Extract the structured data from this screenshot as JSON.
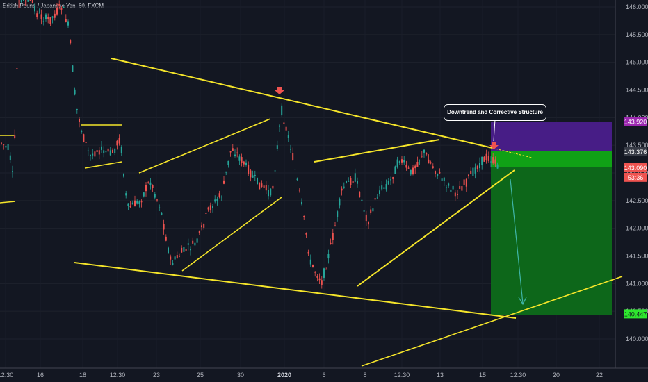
{
  "title": "British Pound / Japanese Yen, 60, FXCM",
  "annotation": "Downtrend and Corrective Structure",
  "chart_data": {
    "type": "candlestick",
    "symbol": "British Pound / Japanese Yen",
    "interval": "60",
    "source": "FXCM",
    "y_ticks": [
      "146.000",
      "145.500",
      "145.000",
      "144.500",
      "144.000",
      "143.500",
      "143.000",
      "142.500",
      "142.000",
      "141.500",
      "141.000",
      "140.500",
      "140.000"
    ],
    "x_ticks": [
      "12:30",
      "16",
      "18",
      "12:30",
      "23",
      "25",
      "30",
      "2020",
      "6",
      "8",
      "12:30",
      "13",
      "15",
      "12:30",
      "20",
      "22"
    ],
    "ylim": [
      139.35,
      146.15
    ],
    "price_labels": {
      "stop_loss": "143.920",
      "entry": "143.376",
      "current": "143.090",
      "countdown": "53:36",
      "take_profit": "140.447"
    },
    "position": {
      "entry": 143.376,
      "stop_loss": 143.92,
      "take_profit": 140.447
    },
    "colors": {
      "background": "#131722",
      "up_candle": "#26a69a",
      "down_candle": "#ef5350",
      "trendline": "#f5e52a",
      "stop_zone": "#4a1e8c",
      "profit_zone": "#0d6b1a",
      "profit_top": "#10a116",
      "arrow": "#3fb5a8"
    }
  }
}
